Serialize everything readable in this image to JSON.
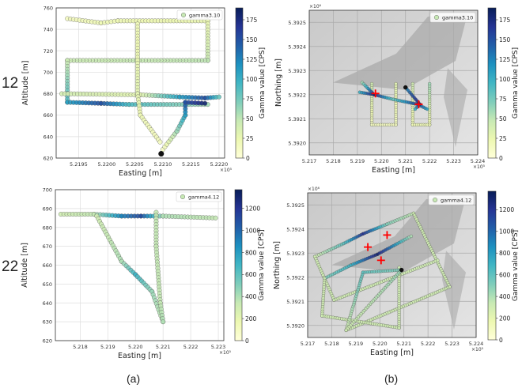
{
  "row_labels": [
    "12",
    "22"
  ],
  "captions": [
    "(a)",
    "(b)"
  ],
  "colormap": [
    "#ffffd9",
    "#edf8b1",
    "#c7e9b4",
    "#7fcdbb",
    "#41b6c4",
    "#1d91c0",
    "#225ea8",
    "#253494",
    "#081d58"
  ],
  "marker_color": "#ff0000",
  "chart_data": [
    {
      "type": "scatter",
      "panel": "a-12",
      "legend": "gamma3.10",
      "legend_position": "top-right",
      "xlabel": "Easting [m]",
      "ylabel": "Altitude [m]",
      "x_multiplier": "×10⁵",
      "xlim": [
        5.2191,
        5.2221
      ],
      "ylim": [
        620,
        760
      ],
      "grid": true,
      "xticks": [
        "5.2195",
        "5.2200",
        "5.2205",
        "5.2210",
        "5.2215",
        "5.2220"
      ],
      "xtick_values": [
        5.2195,
        5.22,
        5.2205,
        5.221,
        5.2215,
        5.222
      ],
      "yticks": [
        "620",
        "640",
        "660",
        "680",
        "700",
        "720",
        "740",
        "760"
      ],
      "ytick_values": [
        620,
        640,
        660,
        680,
        700,
        720,
        740,
        760
      ],
      "colorbar": {
        "label": "Gamma value [CPS]",
        "range": [
          0,
          190
        ],
        "ticks": [
          "0",
          "25",
          "50",
          "75",
          "100",
          "125",
          "150",
          "175"
        ],
        "tick_values": [
          0,
          25,
          50,
          75,
          100,
          125,
          150,
          175
        ]
      },
      "segments": [
        [
          [
            5.2193,
            750,
            15
          ],
          [
            5.2199,
            746,
            20
          ],
          [
            5.2202,
            748,
            20
          ],
          [
            5.2218,
            748,
            25
          ]
        ],
        [
          [
            5.2218,
            748,
            25
          ],
          [
            5.2218,
            711,
            45
          ]
        ],
        [
          [
            5.2218,
            711,
            50
          ],
          [
            5.2193,
            711,
            45
          ]
        ],
        [
          [
            5.2193,
            711,
            45
          ],
          [
            5.2193,
            672,
            90
          ]
        ],
        [
          [
            5.2193,
            672,
            110
          ],
          [
            5.2199,
            671,
            150
          ],
          [
            5.2204,
            670,
            90
          ],
          [
            5.2218,
            670,
            60
          ]
        ],
        [
          [
            5.2192,
            680,
            40
          ],
          [
            5.2206,
            679,
            30
          ],
          [
            5.2213,
            677,
            110
          ],
          [
            5.22175,
            676,
            150
          ],
          [
            5.222,
            677,
            80
          ]
        ],
        [
          [
            5.22055,
            745,
            20
          ],
          [
            5.22055,
            680,
            30
          ],
          [
            5.2206,
            660,
            20
          ],
          [
            5.22095,
            635,
            15
          ]
        ],
        [
          [
            5.221,
            628,
            10
          ],
          [
            5.22125,
            645,
            60
          ],
          [
            5.2214,
            660,
            110
          ],
          [
            5.2214,
            672,
            150
          ],
          [
            5.22175,
            671,
            180
          ]
        ]
      ],
      "points": [
        {
          "x": 5.22097,
          "y": 624,
          "gamma": 190
        }
      ]
    },
    {
      "type": "scatter",
      "panel": "b-12",
      "legend": "gamma3.10",
      "legend_position": "top-right",
      "xlabel": "Easting [m]",
      "ylabel": "Northing [m]",
      "x_multiplier": "×10⁵",
      "y_multiplier": "×10⁶",
      "xlim": [
        5.217,
        5.224
      ],
      "ylim": [
        5.39195,
        5.39255
      ],
      "grid": true,
      "xticks": [
        "5.217",
        "5.218",
        "5.219",
        "5.220",
        "5.221",
        "5.222",
        "5.223",
        "5.224"
      ],
      "xtick_values": [
        5.217,
        5.218,
        5.219,
        5.22,
        5.221,
        5.222,
        5.223,
        5.224
      ],
      "yticks": [
        "5.3920",
        "5.3921",
        "5.3922",
        "5.3923",
        "5.3924",
        "5.3925"
      ],
      "ytick_values": [
        5.392,
        5.3921,
        5.3922,
        5.3923,
        5.3924,
        5.3925
      ],
      "colorbar": {
        "label": "Gamma value [CPS]",
        "range": [
          0,
          190
        ],
        "ticks": [
          "0",
          "25",
          "50",
          "75",
          "100",
          "125",
          "150",
          "175"
        ],
        "tick_values": [
          0,
          25,
          50,
          75,
          100,
          125,
          150,
          175
        ]
      },
      "segments": [
        [
          [
            5.2196,
            5.392245,
            40
          ],
          [
            5.2196,
            5.392075,
            15
          ],
          [
            5.2206,
            5.392075,
            15
          ],
          [
            5.2206,
            5.392245,
            30
          ]
        ],
        [
          [
            5.2213,
            5.392245,
            40
          ],
          [
            5.2213,
            5.392075,
            20
          ],
          [
            5.222,
            5.392075,
            20
          ],
          [
            5.222,
            5.392245,
            60
          ]
        ],
        [
          [
            5.2192,
            5.39225,
            60
          ],
          [
            5.2197,
            5.3922,
            170
          ],
          [
            5.2205,
            5.39218,
            80
          ],
          [
            5.2215,
            5.39216,
            160
          ],
          [
            5.2219,
            5.39214,
            110
          ]
        ],
        [
          [
            5.2191,
            5.39221,
            100
          ],
          [
            5.2197,
            5.3922,
            180
          ]
        ],
        [
          [
            5.221,
            5.39223,
            120
          ],
          [
            5.2216,
            5.39216,
            180
          ],
          [
            5.2214,
            5.39214,
            100
          ]
        ]
      ],
      "sources": [
        {
          "x": 5.21975,
          "y": 5.392205
        },
        {
          "x": 5.22155,
          "y": 5.39216
        }
      ],
      "points": [
        {
          "x": 5.221,
          "y": 5.39223,
          "gamma": 190
        }
      ]
    },
    {
      "type": "scatter",
      "panel": "a-22",
      "legend": "gamma4.12",
      "legend_position": "top-right",
      "xlabel": "Easting [m]",
      "ylabel": "Altitude [m]",
      "x_multiplier": "×10⁵",
      "xlim": [
        5.2171,
        5.2232
      ],
      "ylim": [
        620,
        700
      ],
      "grid": true,
      "xticks": [
        "5.218",
        "5.219",
        "5.220",
        "5.221",
        "5.222",
        "5.223"
      ],
      "xtick_values": [
        5.218,
        5.219,
        5.22,
        5.221,
        5.222,
        5.223
      ],
      "yticks": [
        "620",
        "630",
        "640",
        "650",
        "660",
        "670",
        "680",
        "690",
        "700"
      ],
      "ytick_values": [
        620,
        630,
        640,
        650,
        660,
        670,
        680,
        690,
        700
      ],
      "colorbar": {
        "label": "Gamma value [CPS]",
        "range": [
          0,
          1370
        ],
        "ticks": [
          "0",
          "200",
          "400",
          "600",
          "800",
          "1000",
          "1200"
        ],
        "tick_values": [
          0,
          200,
          400,
          600,
          800,
          1000,
          1200
        ]
      },
      "segments": [
        [
          [
            5.2173,
            687,
            300
          ],
          [
            5.2185,
            687,
            350
          ],
          [
            5.2195,
            686,
            900
          ],
          [
            5.2202,
            686,
            1100
          ],
          [
            5.221,
            686,
            400
          ],
          [
            5.2229,
            685,
            350
          ]
        ],
        [
          [
            5.2186,
            686,
            300
          ],
          [
            5.2195,
            662,
            400
          ],
          [
            5.22,
            655,
            700
          ],
          [
            5.2206,
            646,
            450
          ],
          [
            5.221,
            630,
            350
          ]
        ],
        [
          [
            5.22075,
            688,
            350
          ],
          [
            5.22075,
            670,
            350
          ],
          [
            5.2209,
            640,
            350
          ],
          [
            5.221,
            630,
            400
          ]
        ]
      ],
      "points": []
    },
    {
      "type": "scatter",
      "panel": "b-22",
      "legend": "gamma4.12",
      "legend_position": "top-right",
      "xlabel": "Easting [m]",
      "ylabel": "Northing [m]",
      "x_multiplier": "×10⁵",
      "y_multiplier": "×10⁶",
      "xlim": [
        5.217,
        5.224
      ],
      "ylim": [
        5.39195,
        5.39255
      ],
      "grid": true,
      "xticks": [
        "5.217",
        "5.218",
        "5.219",
        "5.220",
        "5.221",
        "5.222",
        "5.223",
        "5.224"
      ],
      "xtick_values": [
        5.217,
        5.218,
        5.219,
        5.22,
        5.221,
        5.222,
        5.223,
        5.224
      ],
      "yticks": [
        "5.3920",
        "5.3921",
        "5.3922",
        "5.3923",
        "5.3924",
        "5.3925"
      ],
      "ytick_values": [
        5.392,
        5.3921,
        5.3922,
        5.3923,
        5.3924,
        5.3925
      ],
      "colorbar": {
        "label": "Gamma value [CPS]",
        "range": [
          0,
          1370
        ],
        "ticks": [
          "0",
          "200",
          "400",
          "600",
          "800",
          "1000",
          "1200"
        ],
        "tick_values": [
          0,
          200,
          400,
          600,
          800,
          1000,
          1200
        ]
      },
      "segments": [
        [
          [
            5.2173,
            5.392285,
            300
          ],
          [
            5.2185,
            5.39234,
            600
          ],
          [
            5.2193,
            5.39238,
            1200
          ],
          [
            5.2203,
            5.39242,
            500
          ],
          [
            5.2214,
            5.392465,
            350
          ]
        ],
        [
          [
            5.2214,
            5.392465,
            300
          ],
          [
            5.2229,
            5.39216,
            300
          ]
        ],
        [
          [
            5.2229,
            5.39216,
            300
          ],
          [
            5.2186,
            5.39198,
            300
          ]
        ],
        [
          [
            5.2173,
            5.392285,
            300
          ],
          [
            5.2181,
            5.392105,
            300
          ]
        ],
        [
          [
            5.2181,
            5.392105,
            300
          ],
          [
            5.2224,
            5.39227,
            300
          ]
        ],
        [
          [
            5.2177,
            5.392195,
            500
          ],
          [
            5.2188,
            5.39225,
            700
          ],
          [
            5.2199,
            5.392295,
            1300
          ],
          [
            5.2213,
            5.39237,
            400
          ]
        ],
        [
          [
            5.2177,
            5.392195,
            300
          ],
          [
            5.2176,
            5.39204,
            300
          ],
          [
            5.2208,
            5.39199,
            300
          ],
          [
            5.2208,
            5.39224,
            300
          ]
        ],
        [
          [
            5.2186,
            5.39198,
            300
          ],
          [
            5.2193,
            5.39222,
            600
          ],
          [
            5.2209,
            5.39223,
            500
          ]
        ],
        [
          [
            5.2209,
            5.39223,
            450
          ],
          [
            5.2186,
            5.39198,
            300
          ]
        ]
      ],
      "sources": [
        {
          "x": 5.2203,
          "y": 5.392375
        },
        {
          "x": 5.2195,
          "y": 5.392325
        },
        {
          "x": 5.22005,
          "y": 5.39227
        }
      ],
      "points": [
        {
          "x": 5.2209,
          "y": 5.39223,
          "gamma": 1370
        }
      ]
    }
  ]
}
